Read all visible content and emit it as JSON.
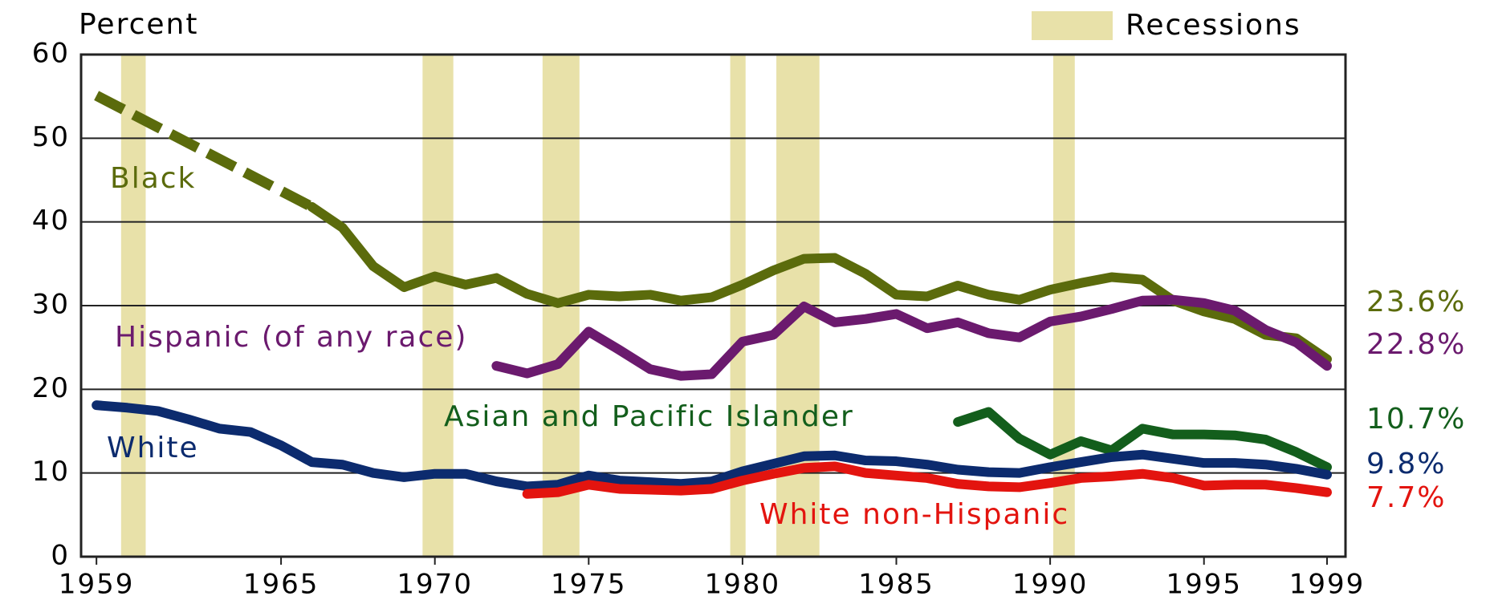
{
  "chart_data": {
    "type": "line",
    "y_axis_label": "Percent",
    "recession_label": "Recessions",
    "recession_color": "#e8e1a9",
    "recessions": [
      [
        1959.8,
        1960.6
      ],
      [
        1969.6,
        1970.6
      ],
      [
        1973.5,
        1974.7
      ],
      [
        1979.6,
        1980.1
      ],
      [
        1981.1,
        1982.5
      ],
      [
        1990.1,
        1990.8
      ]
    ],
    "x": [
      1959,
      1960,
      1961,
      1962,
      1963,
      1964,
      1965,
      1966,
      1967,
      1968,
      1969,
      1970,
      1971,
      1972,
      1973,
      1974,
      1975,
      1976,
      1977,
      1978,
      1979,
      1980,
      1981,
      1982,
      1983,
      1984,
      1985,
      1986,
      1987,
      1988,
      1989,
      1990,
      1991,
      1992,
      1993,
      1994,
      1995,
      1996,
      1997,
      1998,
      1999
    ],
    "xlim": [
      1958.5,
      1999.6
    ],
    "xticks": [
      1959,
      1965,
      1970,
      1975,
      1980,
      1985,
      1990,
      1995,
      1999
    ],
    "ylim": [
      0,
      60
    ],
    "yticks": [
      0,
      10,
      20,
      30,
      40,
      50,
      60
    ],
    "grid": true,
    "series": [
      {
        "name": "Black",
        "color": "#5b6b0c",
        "gap_style": "dashed",
        "values": [
          55.1,
          null,
          null,
          null,
          null,
          null,
          null,
          41.8,
          39.3,
          34.7,
          32.2,
          33.5,
          32.5,
          33.3,
          31.4,
          30.3,
          31.3,
          31.1,
          31.3,
          30.6,
          31.0,
          32.5,
          34.2,
          35.6,
          35.7,
          33.8,
          31.3,
          31.1,
          32.4,
          31.3,
          30.7,
          31.9,
          32.7,
          33.4,
          33.1,
          30.6,
          29.3,
          28.4,
          26.5,
          26.1,
          23.6
        ],
        "value_labels": [
          null,
          null,
          null,
          null,
          null,
          null,
          null,
          null,
          null,
          null,
          null,
          null,
          null,
          null,
          null,
          null,
          null,
          null,
          null,
          null,
          null,
          null,
          null,
          null,
          null,
          null,
          null,
          null,
          null,
          null,
          null,
          null,
          null,
          null,
          null,
          null,
          null,
          null,
          null,
          null,
          "23.6%"
        ]
      },
      {
        "name": "Hispanic (of any race)",
        "color": "#6b1a6e",
        "values": [
          null,
          null,
          null,
          null,
          null,
          null,
          null,
          null,
          null,
          null,
          null,
          null,
          null,
          22.8,
          21.9,
          23.0,
          26.9,
          24.7,
          22.4,
          21.6,
          21.8,
          25.7,
          26.5,
          29.9,
          28.0,
          28.4,
          29.0,
          27.3,
          28.0,
          26.7,
          26.2,
          28.1,
          28.7,
          29.6,
          30.6,
          30.7,
          30.3,
          29.4,
          27.1,
          25.6,
          22.8
        ],
        "value_labels": [
          null,
          null,
          null,
          null,
          null,
          null,
          null,
          null,
          null,
          null,
          null,
          null,
          null,
          null,
          null,
          null,
          null,
          null,
          null,
          null,
          null,
          null,
          null,
          null,
          null,
          null,
          null,
          null,
          null,
          null,
          null,
          null,
          null,
          null,
          null,
          null,
          null,
          null,
          null,
          null,
          "22.8%"
        ]
      },
      {
        "name": "Asian and Pacific Islander",
        "color": "#135e1c",
        "values": [
          null,
          null,
          null,
          null,
          null,
          null,
          null,
          null,
          null,
          null,
          null,
          null,
          null,
          null,
          null,
          null,
          null,
          null,
          null,
          null,
          null,
          null,
          null,
          null,
          null,
          null,
          null,
          null,
          16.1,
          17.3,
          14.1,
          12.2,
          13.8,
          12.7,
          15.3,
          14.6,
          14.6,
          14.5,
          14.0,
          12.5,
          10.7
        ],
        "value_labels": [
          null,
          null,
          null,
          null,
          null,
          null,
          null,
          null,
          null,
          null,
          null,
          null,
          null,
          null,
          null,
          null,
          null,
          null,
          null,
          null,
          null,
          null,
          null,
          null,
          null,
          null,
          null,
          null,
          null,
          null,
          null,
          null,
          null,
          null,
          null,
          null,
          null,
          null,
          null,
          null,
          "10.7%"
        ]
      },
      {
        "name": "White",
        "color": "#0c2b6e",
        "values": [
          18.1,
          17.8,
          17.4,
          16.4,
          15.3,
          14.9,
          13.3,
          11.3,
          11.0,
          10.0,
          9.5,
          9.9,
          9.9,
          9.0,
          8.4,
          8.6,
          9.7,
          9.1,
          8.9,
          8.7,
          9.0,
          10.2,
          11.1,
          12.0,
          12.1,
          11.5,
          11.4,
          11.0,
          10.4,
          10.1,
          10.0,
          10.7,
          11.3,
          11.9,
          12.2,
          11.7,
          11.2,
          11.2,
          11.0,
          10.5,
          9.8
        ],
        "value_labels": [
          null,
          null,
          null,
          null,
          null,
          null,
          null,
          null,
          null,
          null,
          null,
          null,
          null,
          null,
          null,
          null,
          null,
          null,
          null,
          null,
          null,
          null,
          null,
          null,
          null,
          null,
          null,
          null,
          null,
          null,
          null,
          null,
          null,
          null,
          null,
          null,
          null,
          null,
          null,
          null,
          "9.8%"
        ]
      },
      {
        "name": "White non-Hispanic",
        "color": "#e3140f",
        "values": [
          null,
          null,
          null,
          null,
          null,
          null,
          null,
          null,
          null,
          null,
          null,
          null,
          null,
          null,
          7.5,
          7.7,
          8.6,
          8.1,
          8.0,
          7.9,
          8.1,
          9.1,
          9.9,
          10.6,
          10.8,
          10.0,
          9.7,
          9.4,
          8.7,
          8.4,
          8.3,
          8.8,
          9.4,
          9.6,
          9.9,
          9.4,
          8.5,
          8.6,
          8.6,
          8.2,
          7.7
        ],
        "value_labels": [
          null,
          null,
          null,
          null,
          null,
          null,
          null,
          null,
          null,
          null,
          null,
          null,
          null,
          null,
          null,
          null,
          null,
          null,
          null,
          null,
          null,
          null,
          null,
          null,
          null,
          null,
          null,
          null,
          null,
          null,
          null,
          null,
          null,
          null,
          null,
          null,
          null,
          null,
          null,
          null,
          "7.7%"
        ]
      }
    ]
  }
}
